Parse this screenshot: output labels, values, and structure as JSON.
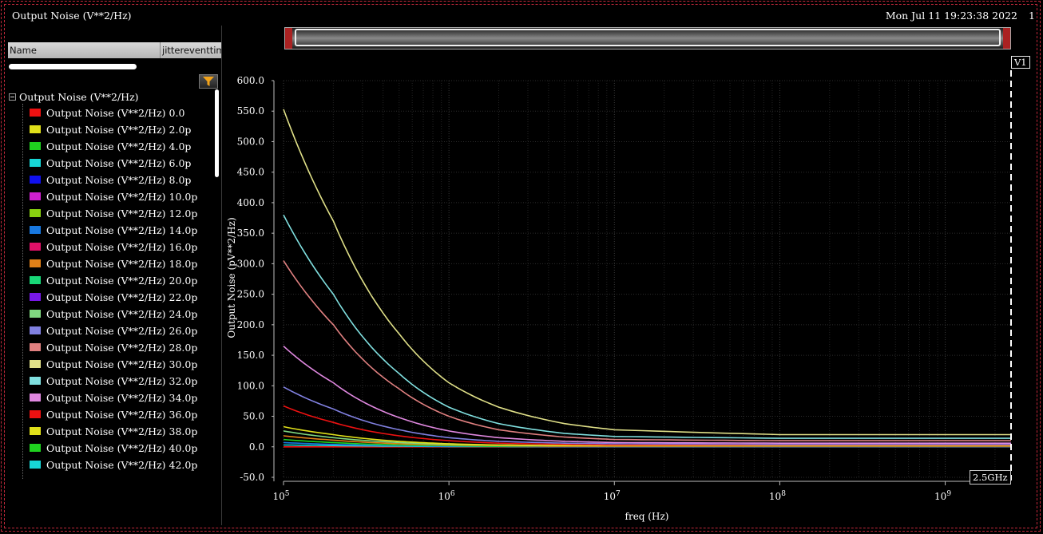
{
  "window": {
    "title": "Output Noise (V**2/Hz)",
    "datetime": "Mon Jul 11 19:23:38 2022",
    "page": "1"
  },
  "browser": {
    "col_name": "Name",
    "col_jitter": "jittereventtim",
    "filter_icon": "filter-funnel-icon",
    "root_label": "Output Noise (V**2/Hz)",
    "items": [
      {
        "label": "Output Noise (V**2/Hz)  0.0",
        "color": "#ee1111"
      },
      {
        "label": "Output Noise (V**2/Hz)  2.0p",
        "color": "#e0e01a"
      },
      {
        "label": "Output Noise (V**2/Hz)  4.0p",
        "color": "#1fd21f"
      },
      {
        "label": "Output Noise (V**2/Hz)  6.0p",
        "color": "#17d6d6"
      },
      {
        "label": "Output Noise (V**2/Hz)  8.0p",
        "color": "#1010ee"
      },
      {
        "label": "Output Noise (V**2/Hz)  10.0p",
        "color": "#d020d0"
      },
      {
        "label": "Output Noise (V**2/Hz)  12.0p",
        "color": "#88d010"
      },
      {
        "label": "Output Noise (V**2/Hz)  14.0p",
        "color": "#1878e0"
      },
      {
        "label": "Output Noise (V**2/Hz)  16.0p",
        "color": "#e01068"
      },
      {
        "label": "Output Noise (V**2/Hz)  18.0p",
        "color": "#e08018"
      },
      {
        "label": "Output Noise (V**2/Hz)  20.0p",
        "color": "#18d878"
      },
      {
        "label": "Output Noise (V**2/Hz)  22.0p",
        "color": "#7818e8"
      },
      {
        "label": "Output Noise (V**2/Hz)  24.0p",
        "color": "#80d880"
      },
      {
        "label": "Output Noise (V**2/Hz)  26.0p",
        "color": "#8080e0"
      },
      {
        "label": "Output Noise (V**2/Hz)  28.0p",
        "color": "#e08080"
      },
      {
        "label": "Output Noise (V**2/Hz)  30.0p",
        "color": "#e0e088"
      },
      {
        "label": "Output Noise (V**2/Hz)  32.0p",
        "color": "#80e0e0"
      },
      {
        "label": "Output Noise (V**2/Hz)  34.0p",
        "color": "#e088e0"
      },
      {
        "label": "Output Noise (V**2/Hz)  36.0p",
        "color": "#ee1111"
      },
      {
        "label": "Output Noise (V**2/Hz)  38.0p",
        "color": "#e0e01a"
      },
      {
        "label": "Output Noise (V**2/Hz)  40.0p",
        "color": "#1fd21f"
      },
      {
        "label": "Output Noise (V**2/Hz)  42.0p",
        "color": "#17d6d6"
      }
    ]
  },
  "markers": {
    "vertical_marker": "V1",
    "marker_freq": "2.5GHz"
  },
  "chart_data": {
    "type": "line",
    "xlabel": "freq (Hz)",
    "ylabel": "Output Noise (pV**2/Hz)",
    "xscale": "log",
    "xlim": [
      100000,
      2500000000
    ],
    "ylim": [
      -50,
      600
    ],
    "yticks": [
      "600.0",
      "550.0",
      "500.0",
      "450.0",
      "400.0",
      "350.0",
      "300.0",
      "250.0",
      "200.0",
      "150.0",
      "100.0",
      "50.0",
      "0.0",
      "-50.0"
    ],
    "xticks": [
      {
        "base": "10",
        "exp": "5"
      },
      {
        "base": "10",
        "exp": "6"
      },
      {
        "base": "10",
        "exp": "7"
      },
      {
        "base": "10",
        "exp": "8"
      },
      {
        "base": "10",
        "exp": "9"
      }
    ],
    "grid": true,
    "series": [
      {
        "color": "#e0e088",
        "x": [
          100000,
          200000,
          500000,
          1000000,
          2000000,
          5000000,
          10000000,
          100000000,
          2500000000
        ],
        "values": [
          553,
          370,
          185,
          105,
          65,
          38,
          28,
          20,
          20
        ]
      },
      {
        "color": "#80e0e0",
        "x": [
          100000,
          200000,
          500000,
          1000000,
          2000000,
          5000000,
          10000000,
          100000000,
          2500000000
        ],
        "values": [
          380,
          250,
          120,
          65,
          38,
          22,
          17,
          14,
          14
        ]
      },
      {
        "color": "#e08080",
        "x": [
          100000,
          200000,
          500000,
          1000000,
          2000000,
          5000000,
          10000000,
          100000000,
          2500000000
        ],
        "values": [
          305,
          200,
          95,
          50,
          28,
          16,
          12,
          10,
          10
        ]
      },
      {
        "color": "#e088e0",
        "x": [
          100000,
          200000,
          500000,
          1000000,
          2000000,
          5000000,
          10000000,
          100000000,
          2500000000
        ],
        "values": [
          165,
          105,
          48,
          26,
          15,
          9,
          7,
          6,
          6
        ]
      },
      {
        "color": "#8080e0",
        "x": [
          100000,
          200000,
          500000,
          1000000,
          2000000,
          5000000,
          10000000,
          100000000,
          2500000000
        ],
        "values": [
          98,
          62,
          28,
          15,
          9,
          6,
          5,
          4,
          4
        ]
      },
      {
        "color": "#ee1111",
        "x": [
          100000,
          200000,
          500000,
          1000000,
          2000000,
          5000000,
          10000000,
          100000000,
          2500000000
        ],
        "values": [
          67,
          40,
          18,
          10,
          6,
          4,
          3,
          3,
          3
        ]
      },
      {
        "color": "#e0e01a",
        "x": [
          100000,
          200000,
          500000,
          1000000,
          2000000,
          5000000,
          10000000,
          100000000,
          2500000000
        ],
        "values": [
          33,
          20,
          9,
          5,
          3,
          2,
          2,
          2,
          2
        ]
      },
      {
        "color": "#80d880",
        "x": [
          100000,
          200000,
          500000,
          1000000,
          2000000,
          5000000,
          10000000,
          100000000,
          2500000000
        ],
        "values": [
          26,
          15,
          7,
          4,
          3,
          2,
          2,
          2,
          2
        ]
      },
      {
        "color": "#e08018",
        "x": [
          100000,
          200000,
          500000,
          1000000,
          2000000,
          5000000,
          10000000,
          100000000,
          2500000000
        ],
        "values": [
          18,
          11,
          5,
          3,
          2,
          1,
          1,
          1,
          1
        ]
      },
      {
        "color": "#1fd21f",
        "x": [
          100000,
          200000,
          500000,
          1000000,
          2000000,
          5000000,
          10000000,
          100000000,
          2500000000
        ],
        "values": [
          12,
          7,
          3,
          2,
          1,
          1,
          1,
          1,
          1
        ]
      },
      {
        "color": "#1878e0",
        "x": [
          100000,
          200000,
          500000,
          1000000,
          2000000,
          5000000,
          10000000,
          100000000,
          2500000000
        ],
        "values": [
          7,
          4,
          2,
          1,
          1,
          0.5,
          0.5,
          0.5,
          0.5
        ]
      },
      {
        "color": "#17d6d6",
        "x": [
          100000,
          200000,
          500000,
          1000000,
          2000000,
          5000000,
          10000000,
          100000000,
          2500000000
        ],
        "values": [
          3,
          2,
          1,
          0.5,
          0.3,
          0.2,
          0.2,
          0.2,
          0.2
        ]
      },
      {
        "color": "#ee1111",
        "x": [
          100000,
          200000,
          500000,
          1000000,
          2000000,
          5000000,
          10000000,
          100000000,
          2500000000
        ],
        "values": [
          0,
          0,
          0,
          0,
          0,
          0,
          0,
          0,
          0
        ]
      }
    ]
  }
}
